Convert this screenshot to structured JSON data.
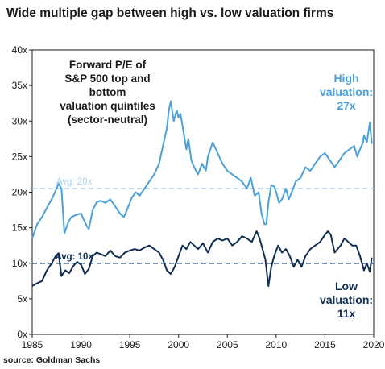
{
  "title": "Wide multiple gap between high vs. low valuation firms",
  "source": "source: Goldman Sachs",
  "colors": {
    "high": "#4aa0dc",
    "high_avg": "#a9cff0",
    "low": "#0f2d52",
    "low_avg": "#0f2d52",
    "axis": "#1a1a1a",
    "text": "#1a1a1a"
  },
  "chart_data": {
    "type": "line",
    "title": "Wide multiple gap between high vs. low valuation firms",
    "xlabel": "",
    "ylabel": "",
    "xlim": [
      1985,
      2020
    ],
    "ylim": [
      0,
      40
    ],
    "x_ticks": [
      1985,
      1990,
      1995,
      2000,
      2005,
      2010,
      2015,
      2020
    ],
    "x_tick_labels": [
      "1985",
      "1990",
      "1995",
      "2000",
      "2005",
      "2010",
      "2015",
      "2020"
    ],
    "y_ticks": [
      0,
      5,
      10,
      15,
      20,
      25,
      30,
      35,
      40
    ],
    "y_tick_labels": [
      "0x",
      "5x",
      "10x",
      "15x",
      "20x",
      "25x",
      "30x",
      "35x",
      "40x"
    ],
    "grid": false,
    "series": [
      {
        "name": "High valuation",
        "x": [
          1985.0,
          1985.5,
          1986.0,
          1986.5,
          1987.0,
          1987.4,
          1987.7,
          1988.0,
          1988.3,
          1988.7,
          1989.0,
          1989.5,
          1990.0,
          1990.5,
          1990.8,
          1991.2,
          1991.6,
          1992.0,
          1992.5,
          1993.0,
          1993.5,
          1994.0,
          1994.4,
          1994.8,
          1995.2,
          1995.6,
          1996.0,
          1996.5,
          1997.0,
          1997.5,
          1998.0,
          1998.4,
          1998.8,
          1999.0,
          1999.2,
          1999.5,
          1999.8,
          2000.0,
          2000.2,
          2000.5,
          2000.8,
          2001.0,
          2001.3,
          2001.6,
          2002.0,
          2002.4,
          2002.8,
          2003.0,
          2003.5,
          2004.0,
          2004.5,
          2005.0,
          2005.5,
          2006.0,
          2006.5,
          2007.0,
          2007.4,
          2007.8,
          2008.2,
          2008.5,
          2008.8,
          2009.0,
          2009.2,
          2009.5,
          2009.8,
          2010.0,
          2010.3,
          2010.6,
          2011.0,
          2011.3,
          2011.6,
          2012.0,
          2012.5,
          2013.0,
          2013.5,
          2014.0,
          2014.5,
          2015.0,
          2015.5,
          2016.0,
          2016.5,
          2017.0,
          2017.5,
          2018.0,
          2018.3,
          2018.6,
          2018.9,
          2019.0,
          2019.3,
          2019.6,
          2019.8
        ],
        "values": [
          13.5,
          15.5,
          16.5,
          17.8,
          19.0,
          20.2,
          21.2,
          20.5,
          14.2,
          15.8,
          16.5,
          16.8,
          17.0,
          15.5,
          14.8,
          17.5,
          18.6,
          18.8,
          18.5,
          19.0,
          18.0,
          17.0,
          16.5,
          17.8,
          19.2,
          20.0,
          19.5,
          20.5,
          21.5,
          22.5,
          24.0,
          26.5,
          29.0,
          31.5,
          32.8,
          30.0,
          31.5,
          30.5,
          31.0,
          28.5,
          26.0,
          27.5,
          24.5,
          23.5,
          22.5,
          24.0,
          23.0,
          25.0,
          27.0,
          25.5,
          24.0,
          23.0,
          22.5,
          22.0,
          21.5,
          20.5,
          22.0,
          19.5,
          20.0,
          17.0,
          15.5,
          15.5,
          18.5,
          21.0,
          20.8,
          20.0,
          18.5,
          19.0,
          20.5,
          19.0,
          20.0,
          21.5,
          22.0,
          23.5,
          23.0,
          24.0,
          25.0,
          25.5,
          24.5,
          23.5,
          24.5,
          25.5,
          26.0,
          26.5,
          25.0,
          26.0,
          27.0,
          28.0,
          27.0,
          29.8,
          26.8
        ]
      },
      {
        "name": "Low valuation",
        "x": [
          1985.0,
          1985.5,
          1986.0,
          1986.5,
          1987.0,
          1987.4,
          1987.7,
          1988.0,
          1988.4,
          1988.8,
          1989.2,
          1989.6,
          1990.0,
          1990.4,
          1990.8,
          1991.2,
          1991.6,
          1992.0,
          1992.5,
          1993.0,
          1993.5,
          1994.0,
          1994.5,
          1995.0,
          1995.5,
          1996.0,
          1996.5,
          1997.0,
          1997.5,
          1998.0,
          1998.4,
          1998.8,
          1999.2,
          1999.6,
          2000.0,
          2000.4,
          2000.8,
          2001.2,
          2001.6,
          2002.0,
          2002.5,
          2003.0,
          2003.5,
          2004.0,
          2004.5,
          2005.0,
          2005.5,
          2006.0,
          2006.5,
          2007.0,
          2007.5,
          2008.0,
          2008.3,
          2008.6,
          2008.9,
          2009.2,
          2009.5,
          2009.8,
          2010.2,
          2010.6,
          2011.0,
          2011.4,
          2011.8,
          2012.2,
          2012.6,
          2013.0,
          2013.5,
          2014.0,
          2014.5,
          2015.0,
          2015.3,
          2015.6,
          2016.0,
          2016.3,
          2016.6,
          2017.0,
          2017.4,
          2017.8,
          2018.2,
          2018.6,
          2019.0,
          2019.3,
          2019.6,
          2019.8
        ],
        "values": [
          6.8,
          7.2,
          7.5,
          9.0,
          10.0,
          11.0,
          11.4,
          8.2,
          9.0,
          8.6,
          9.6,
          10.2,
          9.8,
          8.5,
          9.2,
          11.0,
          11.5,
          11.3,
          11.0,
          11.8,
          11.0,
          10.8,
          11.5,
          11.8,
          12.0,
          11.8,
          12.2,
          12.5,
          12.0,
          11.5,
          10.5,
          9.0,
          8.5,
          9.5,
          11.0,
          12.5,
          12.0,
          13.0,
          12.5,
          12.0,
          12.8,
          11.5,
          13.0,
          13.5,
          13.2,
          13.5,
          12.5,
          13.0,
          13.8,
          13.5,
          13.0,
          14.5,
          13.5,
          12.0,
          10.5,
          6.8,
          9.5,
          11.0,
          12.5,
          11.5,
          12.0,
          11.0,
          9.5,
          10.5,
          9.5,
          11.0,
          12.0,
          12.5,
          13.0,
          14.0,
          14.5,
          14.0,
          11.5,
          12.0,
          12.5,
          13.5,
          13.0,
          12.5,
          12.5,
          11.0,
          9.0,
          10.0,
          8.8,
          10.8
        ]
      }
    ],
    "reference_lines": [
      {
        "label": "Avg: 20x",
        "value": 20.5,
        "style": "dashed"
      },
      {
        "label": "Avg: 10x",
        "value": 10.0,
        "style": "dashed"
      }
    ],
    "annotations": {
      "inset": [
        "Forward P/E of",
        "S&P 500 top and bottom",
        "valuation quintiles",
        "(sector-neutral)"
      ],
      "high": [
        "High",
        "valuation:",
        "27x"
      ],
      "low": [
        "Low",
        "valuation:",
        "11x"
      ]
    }
  }
}
